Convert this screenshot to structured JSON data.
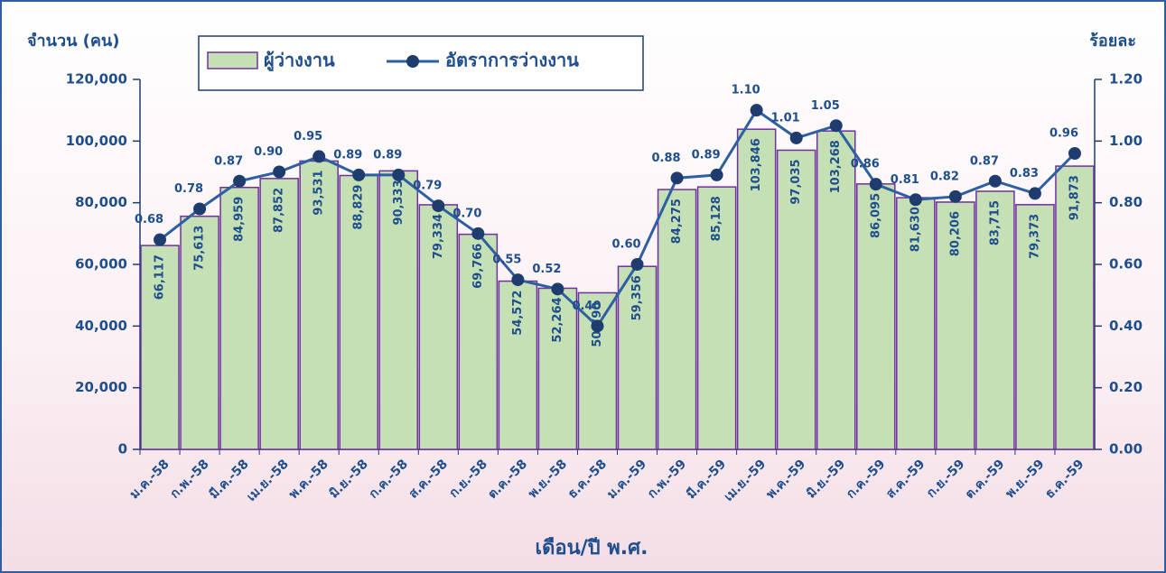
{
  "chart_data": {
    "type": "bar_line",
    "y_label": "จำนวน (คน)",
    "y2_label": "ร้อยละ",
    "x_label": "เดือน/ปี พ.ศ.",
    "categories": [
      "ม.ค.-58",
      "ก.พ.-58",
      "มี.ค.-58",
      "เม.ย.-58",
      "พ.ค.-58",
      "มิ.ย.-58",
      "ก.ค.-58",
      "ส.ค.-58",
      "ก.ย.-58",
      "ต.ค.-58",
      "พ.ย.-58",
      "ธ.ค.-58",
      "ม.ค.-59",
      "ก.พ.-59",
      "มี.ค.-59",
      "เม.ย.-59",
      "พ.ค.-59",
      "มิ.ย.-59",
      "ก.ค.-59",
      "ส.ค.-59",
      "ก.ย.-59",
      "ต.ค.-59",
      "พ.ย.-59",
      "ธ.ค.-59"
    ],
    "series": [
      {
        "name": "ผู้ว่างงาน",
        "type": "bar",
        "axis": "y",
        "color": "#c5e0b4",
        "edge_color": "#7030a0",
        "values": [
          66117,
          75613,
          84959,
          87852,
          93531,
          88829,
          90333,
          79334,
          69766,
          54572,
          52264,
          50790,
          59356,
          84275,
          85128,
          103846,
          97035,
          103268,
          86095,
          81630,
          80206,
          83715,
          79373,
          91873
        ],
        "value_labels": [
          "66,117",
          "75,613",
          "84,959",
          "87,852",
          "93,531",
          "88,829",
          "90,333",
          "79,334",
          "69,766",
          "54,572",
          "52,264",
          "50,790",
          "59,356",
          "84,275",
          "85,128",
          "103,846",
          "97,035",
          "103,268",
          "86,095",
          "81,630",
          "80,206",
          "83,715",
          "79,373",
          "91,873"
        ]
      },
      {
        "name": "อัตราการว่างงาน",
        "type": "line",
        "axis": "y2",
        "color": "#2e5fa3",
        "marker_color": "#1f3c6e",
        "values": [
          0.68,
          0.78,
          0.87,
          0.9,
          0.95,
          0.89,
          0.89,
          0.79,
          0.7,
          0.55,
          0.52,
          0.4,
          0.6,
          0.88,
          0.89,
          1.1,
          1.01,
          1.05,
          0.86,
          0.81,
          0.82,
          0.87,
          0.83,
          0.96
        ],
        "value_labels": [
          "0.68",
          "0.78",
          "0.87",
          "0.90",
          "0.95",
          "0.89",
          "0.89",
          "0.79",
          "0.70",
          "0.55",
          "0.52",
          "0.40",
          "0.60",
          "0.88",
          "0.89",
          "1.10",
          "1.01",
          "1.05",
          "0.86",
          "0.81",
          "0.82",
          "0.87",
          "0.83",
          "0.96"
        ]
      }
    ],
    "ylim": [
      0,
      120000
    ],
    "yticks": [
      0,
      {
        "value": 20000,
        "label": "20,000"
      },
      {
        "value": 40000,
        "label": "40,000"
      },
      {
        "value": 60000,
        "label": "60,000"
      },
      {
        "value": 80000,
        "label": "80,000"
      },
      {
        "value": 100000,
        "label": "100,000"
      },
      {
        "value": 120000,
        "label": "120,000"
      }
    ],
    "y2lim": [
      0,
      1.2
    ],
    "y2ticks": [
      {
        "value": 0,
        "label": "0.00"
      },
      {
        "value": 0.2,
        "label": "0.20"
      },
      {
        "value": 0.4,
        "label": "0.40"
      },
      {
        "value": 0.6,
        "label": "0.60"
      },
      {
        "value": 0.8,
        "label": "0.80"
      },
      {
        "value": 1.0,
        "label": "1.00"
      },
      {
        "value": 1.2,
        "label": "1.20"
      }
    ]
  }
}
